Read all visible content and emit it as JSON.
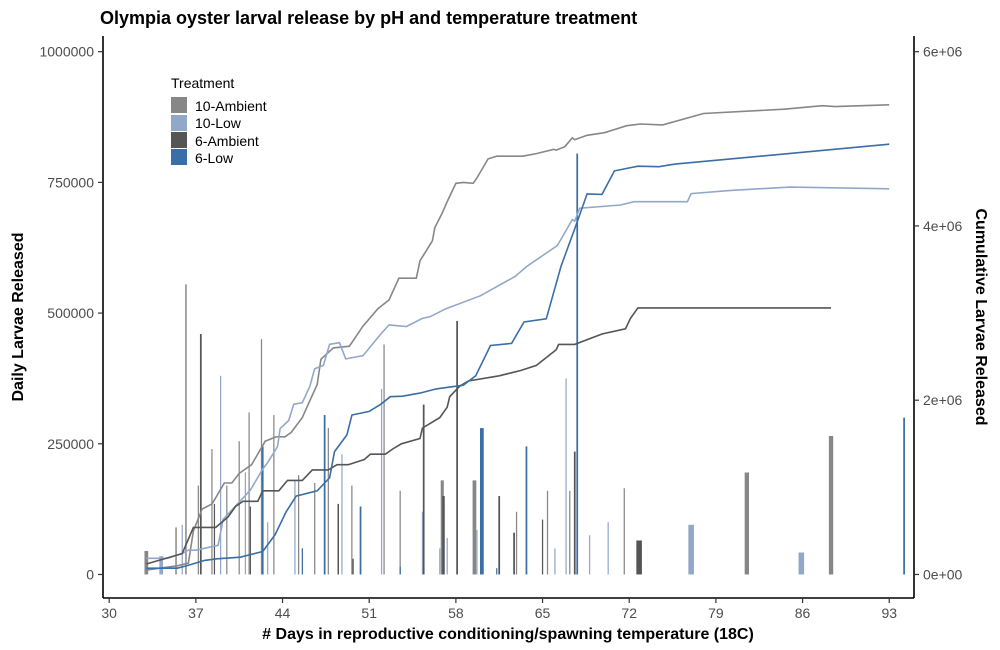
{
  "chart_data": {
    "type": "bar+line",
    "title": "Olympia oyster larval release by pH and temperature treatment",
    "xlabel": "# Days in reproductive conditioning/spawning temperature (18C)",
    "ylabel": "Daily Larvae Released",
    "y2label": "Cumulative Larvae Released",
    "xlim": [
      29.5,
      95
    ],
    "ylim": [
      -45000,
      1030000
    ],
    "y2lim": [
      -270000,
      6180000
    ],
    "xticks": [
      30,
      37,
      44,
      51,
      58,
      65,
      72,
      79,
      86,
      93
    ],
    "xtick_labels": [
      "30",
      "37",
      "44",
      "51",
      "58",
      "65",
      "72",
      "79",
      "86",
      "93"
    ],
    "yticks": [
      0,
      250000,
      500000,
      750000,
      1000000
    ],
    "ytick_labels": [
      "0",
      "250000",
      "500000",
      "750000",
      "1000000"
    ],
    "y2ticks": [
      0,
      2000000,
      4000000,
      6000000
    ],
    "y2tick_labels": [
      "0e+00",
      "2e+06",
      "4e+06",
      "6e+06"
    ],
    "legend": {
      "title": "Treatment",
      "position": "top-left"
    },
    "series": [
      {
        "name": "10-Ambient",
        "color": "#878787",
        "bars": [
          {
            "x": 33,
            "y": 45000,
            "w": 0.3
          },
          {
            "x": 35.4,
            "y": 90000,
            "w": 0.12
          },
          {
            "x": 36.2,
            "y": 555000,
            "w": 0.12
          },
          {
            "x": 37.2,
            "y": 170000,
            "w": 0.1
          },
          {
            "x": 38.3,
            "y": 240000,
            "w": 0.1
          },
          {
            "x": 39.5,
            "y": 170000,
            "w": 0.1
          },
          {
            "x": 40.5,
            "y": 255000,
            "w": 0.1
          },
          {
            "x": 41.3,
            "y": 310000,
            "w": 0.1
          },
          {
            "x": 42.3,
            "y": 450000,
            "w": 0.1
          },
          {
            "x": 43.3,
            "y": 305000,
            "w": 0.1
          },
          {
            "x": 45.3,
            "y": 190000,
            "w": 0.1
          },
          {
            "x": 46.6,
            "y": 175000,
            "w": 0.1
          },
          {
            "x": 47.7,
            "y": 280000,
            "w": 0.1
          },
          {
            "x": 49.6,
            "y": 170000,
            "w": 0.1
          },
          {
            "x": 52.2,
            "y": 440000,
            "w": 0.1
          },
          {
            "x": 53.5,
            "y": 160000,
            "w": 0.1
          },
          {
            "x": 56.9,
            "y": 180000,
            "w": 0.25
          },
          {
            "x": 59.5,
            "y": 180000,
            "w": 0.3
          },
          {
            "x": 62.9,
            "y": 120000,
            "w": 0.1
          },
          {
            "x": 65.4,
            "y": 160000,
            "w": 0.1
          },
          {
            "x": 67.2,
            "y": 160000,
            "w": 0.1
          },
          {
            "x": 71.6,
            "y": 165000,
            "w": 0.1
          },
          {
            "x": 81.5,
            "y": 195000,
            "w": 0.35
          },
          {
            "x": 88.3,
            "y": 265000,
            "w": 0.35
          }
        ],
        "cumulative": {
          "x": [
            33,
            35.5,
            36.4,
            36.8,
            37.5,
            38.3,
            38.6,
            39.3,
            39.9,
            40.5,
            41.5,
            42.6,
            43.5,
            44.2,
            44.7,
            45.6,
            46.0,
            46.8,
            47.1,
            48.1,
            49.4,
            50.5,
            51.7,
            52.6,
            53.4,
            54.8,
            55.1,
            56.1,
            56.3,
            56.9,
            57.3,
            58.0,
            58.6,
            59.4,
            59.7,
            60.6,
            61.3,
            63.4,
            64.5,
            65.9,
            66.1,
            66.8,
            67.4,
            67.6,
            68.6,
            70.0,
            71.8,
            72.9,
            74.7,
            78.0,
            84.5,
            87.6,
            88.6,
            93.0
          ],
          "y": [
            50000,
            100000,
            130000,
            500000,
            750000,
            810000,
            880000,
            1050000,
            1050000,
            1160000,
            1260000,
            1530000,
            1580000,
            1580000,
            1630000,
            1800000,
            1930000,
            2180000,
            2470000,
            2600000,
            2620000,
            2850000,
            3050000,
            3150000,
            3400000,
            3400000,
            3600000,
            3830000,
            3980000,
            4150000,
            4280000,
            4490000,
            4500000,
            4490000,
            4550000,
            4770000,
            4800000,
            4800000,
            4830000,
            4880000,
            4870000,
            4910000,
            5010000,
            4990000,
            5040000,
            5070000,
            5150000,
            5170000,
            5160000,
            5290000,
            5340000,
            5380000,
            5370000,
            5390000
          ],
          "y_scale": "secondary"
        }
      },
      {
        "name": "10-Low",
        "color": "#92a8c8",
        "bars": [
          {
            "x": 34.2,
            "y": 35000,
            "w": 0.3
          },
          {
            "x": 35.9,
            "y": 95000,
            "w": 0.1
          },
          {
            "x": 39.0,
            "y": 380000,
            "w": 0.1
          },
          {
            "x": 41.0,
            "y": 195000,
            "w": 0.1
          },
          {
            "x": 42.8,
            "y": 100000,
            "w": 0.1
          },
          {
            "x": 45.0,
            "y": 180000,
            "w": 0.1
          },
          {
            "x": 48.8,
            "y": 230000,
            "w": 0.1
          },
          {
            "x": 52.0,
            "y": 355000,
            "w": 0.1
          },
          {
            "x": 55.3,
            "y": 120000,
            "w": 0.1
          },
          {
            "x": 56.7,
            "y": 50000,
            "w": 0.1
          },
          {
            "x": 57.3,
            "y": 70000,
            "w": 0.1
          },
          {
            "x": 59.7,
            "y": 85000,
            "w": 0.1
          },
          {
            "x": 66.0,
            "y": 50000,
            "w": 0.1
          },
          {
            "x": 66.9,
            "y": 375000,
            "w": 0.1
          },
          {
            "x": 68.8,
            "y": 75000,
            "w": 0.1
          },
          {
            "x": 70.3,
            "y": 100000,
            "w": 0.1
          },
          {
            "x": 77.0,
            "y": 95000,
            "w": 0.45
          },
          {
            "x": 85.9,
            "y": 42000,
            "w": 0.45
          }
        ],
        "cumulative": {
          "x": [
            33,
            34.7,
            35.9,
            36.4,
            37.0,
            38.8,
            39.2,
            41.4,
            42.4,
            42.8,
            43.6,
            43.8,
            44.5,
            44.9,
            45.6,
            46.2,
            46.6,
            47.3,
            47.8,
            48.6,
            49.1,
            50.5,
            51.9,
            52.6,
            54.0,
            55.3,
            55.9,
            57.2,
            60.0,
            62.8,
            63.7,
            66.2,
            67.4,
            67.6,
            68.0,
            71.3,
            72.4,
            75.4,
            76.7,
            77.0,
            80.2,
            85.0,
            93.0
          ],
          "y": [
            100000,
            100000,
            130000,
            150000,
            150000,
            180000,
            340000,
            520000,
            650000,
            690000,
            790000,
            900000,
            950000,
            1050000,
            1060000,
            1160000,
            1270000,
            1290000,
            1420000,
            1430000,
            1330000,
            1350000,
            1480000,
            1540000,
            1530000,
            1580000,
            1590000,
            1640000,
            1720000,
            1840000,
            1900000,
            2030000,
            2190000,
            2180000,
            2260000,
            2280000,
            2300000,
            2300000,
            2300000,
            2350000,
            2370000,
            2390000,
            2380000
          ],
          "y_scale": "secondary_alt"
        }
      },
      {
        "name": "6-Ambient",
        "color": "#555555",
        "bars": [
          {
            "x": 37.4,
            "y": 460000,
            "w": 0.14
          },
          {
            "x": 38.5,
            "y": 135000,
            "w": 0.1
          },
          {
            "x": 41.4,
            "y": 130000,
            "w": 0.1
          },
          {
            "x": 48.5,
            "y": 135000,
            "w": 0.12
          },
          {
            "x": 49.7,
            "y": 30000,
            "w": 0.1
          },
          {
            "x": 55.4,
            "y": 325000,
            "w": 0.14
          },
          {
            "x": 57.0,
            "y": 150000,
            "w": 0.2
          },
          {
            "x": 58.1,
            "y": 485000,
            "w": 0.14
          },
          {
            "x": 61.5,
            "y": 150000,
            "w": 0.14
          },
          {
            "x": 62.7,
            "y": 80000,
            "w": 0.14
          },
          {
            "x": 65.0,
            "y": 105000,
            "w": 0.1
          },
          {
            "x": 67.6,
            "y": 235000,
            "w": 0.14
          },
          {
            "x": 72.8,
            "y": 65000,
            "w": 0.45
          }
        ],
        "cumulative": {
          "x": [
            33,
            35.9,
            36.8,
            38.6,
            39.6,
            40.2,
            40.8,
            42.0,
            42.4,
            43.4,
            43.7,
            44.4,
            45.6,
            46.4,
            47.7,
            48.4,
            49.3,
            50.6,
            51.1,
            52.3,
            52.9,
            53.6,
            55.1,
            55.3,
            56.7,
            57.3,
            57.5,
            58.3,
            59.0,
            61.5,
            63.2,
            64.5,
            66.1,
            66.3,
            67.6,
            69.8,
            71.7,
            72.1,
            72.7,
            74.7,
            80.2,
            88.3
          ],
          "y": [
            20000,
            40000,
            90000,
            90000,
            110000,
            130000,
            140000,
            140000,
            160000,
            160000,
            160000,
            180000,
            180000,
            200000,
            200000,
            210000,
            210000,
            220000,
            230000,
            230000,
            240000,
            250000,
            260000,
            280000,
            300000,
            320000,
            340000,
            360000,
            370000,
            380000,
            390000,
            400000,
            430000,
            440000,
            440000,
            460000,
            470000,
            490000,
            510000,
            510000,
            510000,
            510000
          ],
          "y_scale": "primary"
        }
      },
      {
        "name": "6-Low",
        "color": "#3a6ea6",
        "bars": [
          {
            "x": 42.4,
            "y": 245000,
            "w": 0.14
          },
          {
            "x": 45.6,
            "y": 50000,
            "w": 0.1
          },
          {
            "x": 47.4,
            "y": 305000,
            "w": 0.14
          },
          {
            "x": 50.3,
            "y": 130000,
            "w": 0.14
          },
          {
            "x": 53.5,
            "y": 15000,
            "w": 0.1
          },
          {
            "x": 60.1,
            "y": 280000,
            "w": 0.3
          },
          {
            "x": 61.3,
            "y": 12000,
            "w": 0.1
          },
          {
            "x": 63.7,
            "y": 245000,
            "w": 0.14
          },
          {
            "x": 67.8,
            "y": 805000,
            "w": 0.14
          },
          {
            "x": 94.2,
            "y": 300000,
            "w": 0.14
          }
        ],
        "cumulative": {
          "x": [
            33,
            35.5,
            36.3,
            37.0,
            37.7,
            38.7,
            40.6,
            42.4,
            43.4,
            44.3,
            45.1,
            46.8,
            47.8,
            48.2,
            49.2,
            49.6,
            51.0,
            51.9,
            52.7,
            53.7,
            55.1,
            56.4,
            58.6,
            59.6,
            60.8,
            62.5,
            63.5,
            65.3,
            66.5,
            67.6,
            68.6,
            69.8,
            70.8,
            72.7,
            74.4,
            75.7,
            93.0
          ],
          "y": [
            12000,
            12000,
            17000,
            22000,
            27000,
            30000,
            33000,
            44000,
            76000,
            120000,
            150000,
            160000,
            185000,
            235000,
            267000,
            305000,
            312000,
            325000,
            340000,
            341000,
            347000,
            355000,
            362000,
            380000,
            438000,
            442000,
            483000,
            489000,
            590000,
            661000,
            728000,
            727000,
            772000,
            781000,
            780000,
            785000,
            823000
          ],
          "y_scale": "primary"
        }
      }
    ]
  }
}
